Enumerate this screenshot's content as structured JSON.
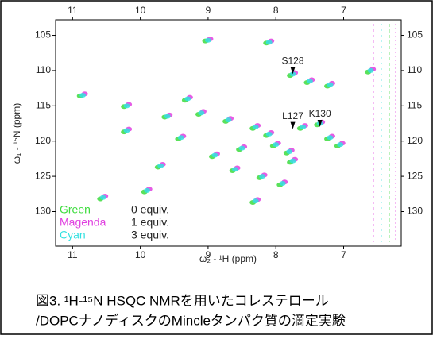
{
  "chart_data": {
    "type": "scatter",
    "x_label": "ω₂ - ¹H (ppm)",
    "y_label": "ω₁ - ¹⁵N (ppm)",
    "xlim": [
      11.25,
      6.15
    ],
    "ylim": [
      102.8,
      134.9
    ],
    "xticks": [
      11,
      10,
      9,
      8,
      7
    ],
    "yticks": [
      105,
      110,
      115,
      120,
      125,
      130
    ],
    "series": [
      {
        "name": "Green",
        "equiv": "0 equiv.",
        "color": "#3ddc3d",
        "x": [
          9.04,
          8.14,
          7.79,
          7.54,
          7.24,
          10.89,
          10.24,
          9.64,
          9.34,
          9.14,
          8.74,
          8.34,
          8.14,
          8.04,
          7.84,
          7.64,
          7.39,
          7.24,
          8.54,
          8.94,
          9.44,
          10.24,
          9.74,
          8.64,
          8.24,
          7.94,
          9.94,
          10.59,
          8.34,
          7.79,
          7.09,
          6.64
        ],
        "y": [
          105.8,
          106.1,
          110.7,
          111.7,
          112.2,
          113.6,
          115.1,
          116.6,
          114.2,
          116.2,
          117.2,
          118.2,
          119.2,
          120.7,
          121.7,
          118.2,
          117.7,
          119.7,
          121.2,
          122.2,
          119.7,
          118.7,
          123.7,
          124.2,
          125.2,
          126.2,
          127.2,
          128.2,
          128.7,
          123.0,
          120.7,
          110.2
        ]
      },
      {
        "name": "Magenda",
        "equiv": "1 equiv.",
        "color": "#e040e0",
        "x": [
          8.97,
          8.07,
          7.72,
          7.47,
          7.17,
          10.82,
          10.17,
          9.57,
          9.27,
          9.07,
          8.67,
          8.27,
          8.07,
          7.97,
          7.77,
          7.57,
          7.32,
          7.17,
          8.47,
          8.87,
          9.37,
          10.17,
          9.67,
          8.57,
          8.17,
          7.87,
          9.87,
          10.52,
          8.27,
          7.72,
          7.02,
          6.57
        ],
        "y": [
          105.5,
          105.8,
          110.3,
          111.3,
          111.8,
          113.3,
          114.8,
          116.3,
          113.8,
          115.8,
          116.8,
          117.8,
          118.8,
          120.3,
          121.3,
          117.8,
          117.3,
          119.3,
          120.8,
          121.8,
          119.3,
          118.3,
          123.3,
          123.8,
          124.8,
          125.8,
          126.8,
          127.8,
          128.3,
          122.6,
          120.3,
          109.8
        ]
      },
      {
        "name": "Cyan",
        "equiv": "3 equiv.",
        "color": "#33e0e0",
        "x": [
          9.0,
          8.1,
          7.75,
          7.5,
          7.2,
          10.85,
          10.2,
          9.6,
          9.3,
          9.1,
          8.7,
          8.3,
          8.1,
          8.0,
          7.8,
          7.6,
          7.35,
          7.2,
          8.5,
          8.9,
          9.4,
          10.2,
          9.7,
          8.6,
          8.2,
          7.9,
          9.9,
          10.55,
          8.3,
          7.75,
          7.05,
          6.6
        ],
        "y": [
          105.7,
          106.0,
          110.5,
          111.5,
          112.0,
          113.5,
          115.0,
          116.5,
          114.0,
          116.0,
          117.0,
          118.0,
          119.0,
          120.5,
          121.5,
          118.0,
          117.5,
          119.5,
          121.0,
          122.0,
          119.5,
          118.5,
          123.5,
          124.0,
          125.0,
          126.0,
          127.0,
          128.0,
          128.5,
          122.8,
          120.5,
          110.0
        ]
      }
    ],
    "annotations": [
      {
        "text": "S128",
        "x": 7.75,
        "y": 110.5
      },
      {
        "text": "L127",
        "x": 7.75,
        "y": 118.3
      },
      {
        "text": "K130",
        "x": 7.35,
        "y": 118.0
      }
    ],
    "caption": [
      "図3. ¹H-¹⁵N HSQC NMRを用いたコレステロール",
      "/DOPCナノディスクのMincleタンパク質の滴定実験"
    ]
  }
}
